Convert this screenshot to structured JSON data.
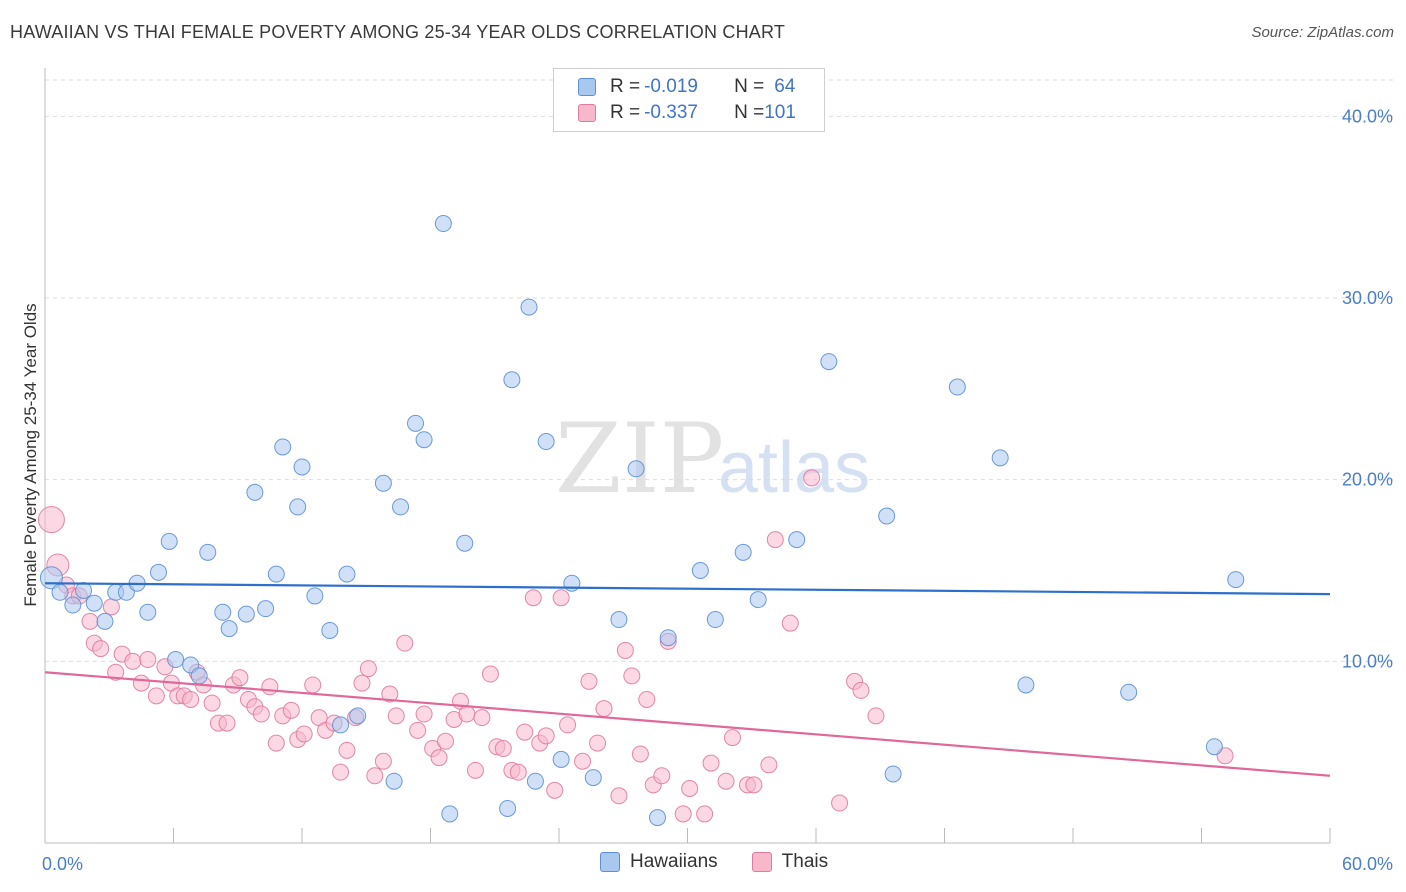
{
  "title": "HAWAIIAN VS THAI FEMALE POVERTY AMONG 25-34 YEAR OLDS CORRELATION CHART",
  "source": "Source: ZipAtlas.com",
  "watermark": {
    "zip": "ZIP",
    "atlas": "atlas"
  },
  "legend": {
    "rows": [
      {
        "r_label": "R = ",
        "r_value": "-0.019",
        "n_label": "N = ",
        "n_value": "64",
        "color": "#a9c8f0",
        "stroke": "#5b8fd6"
      },
      {
        "r_label": "R = ",
        "r_value": "-0.337",
        "n_label": "N = ",
        "n_value": "101",
        "color": "#f7b8cc",
        "stroke": "#e17aa0"
      }
    ]
  },
  "bottom_legend": {
    "items": [
      "Hawaiians",
      "Thais"
    ]
  },
  "chart_data": {
    "type": "scatter",
    "title": "HAWAIIAN VS THAI FEMALE POVERTY AMONG 25-34 YEAR OLDS CORRELATION CHART",
    "ylabel": "Female Poverty Among 25-34 Year Olds",
    "xlabel": "",
    "xlim": [
      0,
      60
    ],
    "ylim": [
      0,
      42
    ],
    "x_ticks": [
      "0.0%",
      "60.0%"
    ],
    "y_ticks": [
      {
        "value": 10,
        "label": "10.0%"
      },
      {
        "value": 20,
        "label": "20.0%"
      },
      {
        "value": 30,
        "label": "30.0%"
      },
      {
        "value": 40,
        "label": "40.0%"
      }
    ],
    "grid": true,
    "colors": {
      "hawaiians": "#5b8fd6",
      "thais": "#e17aa0",
      "hawaiians_line": "#2e6fcc",
      "thais_line": "#e0689a",
      "tick": "#4a7ec8"
    },
    "series": [
      {
        "name": "Hawaiians",
        "trend": {
          "x": [
            0,
            60
          ],
          "y": [
            14.3,
            13.7
          ]
        },
        "points": [
          [
            0.3,
            14.6
          ],
          [
            0.7,
            13.8
          ],
          [
            1.3,
            13.1
          ],
          [
            1.8,
            13.9
          ],
          [
            2.3,
            13.2
          ],
          [
            2.8,
            12.2
          ],
          [
            3.3,
            13.8
          ],
          [
            3.8,
            13.8
          ],
          [
            4.3,
            14.3
          ],
          [
            4.8,
            12.7
          ],
          [
            5.3,
            14.9
          ],
          [
            5.8,
            16.6
          ],
          [
            6.1,
            10.1
          ],
          [
            6.8,
            9.8
          ],
          [
            7.2,
            9.2
          ],
          [
            7.6,
            16.0
          ],
          [
            8.3,
            12.7
          ],
          [
            8.6,
            11.8
          ],
          [
            9.4,
            12.6
          ],
          [
            9.8,
            19.3
          ],
          [
            10.3,
            12.9
          ],
          [
            10.8,
            14.8
          ],
          [
            11.1,
            21.8
          ],
          [
            12.0,
            20.7
          ],
          [
            11.8,
            18.5
          ],
          [
            12.6,
            13.6
          ],
          [
            13.3,
            11.7
          ],
          [
            13.8,
            6.5
          ],
          [
            14.1,
            14.8
          ],
          [
            14.6,
            7.0
          ],
          [
            15.8,
            19.8
          ],
          [
            16.3,
            3.4
          ],
          [
            16.6,
            18.5
          ],
          [
            17.3,
            23.1
          ],
          [
            17.7,
            22.2
          ],
          [
            18.6,
            34.1
          ],
          [
            18.9,
            1.6
          ],
          [
            19.6,
            16.5
          ],
          [
            21.6,
            1.9
          ],
          [
            21.8,
            25.5
          ],
          [
            22.6,
            29.5
          ],
          [
            22.9,
            3.4
          ],
          [
            23.4,
            22.1
          ],
          [
            24.1,
            4.6
          ],
          [
            24.6,
            14.3
          ],
          [
            25.6,
            3.6
          ],
          [
            26.8,
            12.3
          ],
          [
            27.6,
            20.6
          ],
          [
            28.6,
            1.4
          ],
          [
            29.1,
            11.3
          ],
          [
            30.6,
            15.0
          ],
          [
            31.3,
            12.3
          ],
          [
            32.6,
            16.0
          ],
          [
            33.3,
            13.4
          ],
          [
            35.1,
            16.7
          ],
          [
            36.6,
            26.5
          ],
          [
            39.3,
            18.0
          ],
          [
            39.6,
            3.8
          ],
          [
            42.6,
            25.1
          ],
          [
            44.6,
            21.2
          ],
          [
            45.8,
            8.7
          ],
          [
            50.6,
            8.3
          ],
          [
            54.6,
            5.3
          ],
          [
            55.6,
            14.5
          ]
        ]
      },
      {
        "name": "Thais",
        "trend": {
          "x": [
            0,
            60
          ],
          "y": [
            9.4,
            3.7
          ]
        },
        "points": [
          [
            0.3,
            17.8
          ],
          [
            0.6,
            15.3
          ],
          [
            1.0,
            14.2
          ],
          [
            1.3,
            13.6
          ],
          [
            1.6,
            13.6
          ],
          [
            2.1,
            12.2
          ],
          [
            2.3,
            11.0
          ],
          [
            2.6,
            10.7
          ],
          [
            3.1,
            13.0
          ],
          [
            3.3,
            9.4
          ],
          [
            3.6,
            10.4
          ],
          [
            4.1,
            10.0
          ],
          [
            4.5,
            8.8
          ],
          [
            4.8,
            10.1
          ],
          [
            5.2,
            8.1
          ],
          [
            5.6,
            9.7
          ],
          [
            5.9,
            8.8
          ],
          [
            6.2,
            8.1
          ],
          [
            6.5,
            8.1
          ],
          [
            6.8,
            7.9
          ],
          [
            7.1,
            9.4
          ],
          [
            7.4,
            8.7
          ],
          [
            7.8,
            7.7
          ],
          [
            8.1,
            6.6
          ],
          [
            8.5,
            6.6
          ],
          [
            8.8,
            8.7
          ],
          [
            9.1,
            9.1
          ],
          [
            9.5,
            7.9
          ],
          [
            9.8,
            7.5
          ],
          [
            10.1,
            7.1
          ],
          [
            10.5,
            8.6
          ],
          [
            10.8,
            5.5
          ],
          [
            11.1,
            7.0
          ],
          [
            11.5,
            7.3
          ],
          [
            11.8,
            5.7
          ],
          [
            12.1,
            6.0
          ],
          [
            12.5,
            8.7
          ],
          [
            12.8,
            6.9
          ],
          [
            13.1,
            6.2
          ],
          [
            13.5,
            6.6
          ],
          [
            13.8,
            3.9
          ],
          [
            14.1,
            5.1
          ],
          [
            14.5,
            6.9
          ],
          [
            14.8,
            8.8
          ],
          [
            15.1,
            9.6
          ],
          [
            15.4,
            3.7
          ],
          [
            15.8,
            4.5
          ],
          [
            16.1,
            8.2
          ],
          [
            16.4,
            7.0
          ],
          [
            16.8,
            11.0
          ],
          [
            17.4,
            6.2
          ],
          [
            17.7,
            7.1
          ],
          [
            18.1,
            5.2
          ],
          [
            18.4,
            4.7
          ],
          [
            18.7,
            5.6
          ],
          [
            19.1,
            6.8
          ],
          [
            19.4,
            7.8
          ],
          [
            19.7,
            7.1
          ],
          [
            20.1,
            4.0
          ],
          [
            20.4,
            6.9
          ],
          [
            20.8,
            9.3
          ],
          [
            21.1,
            5.3
          ],
          [
            21.4,
            5.2
          ],
          [
            21.8,
            4.0
          ],
          [
            22.1,
            3.9
          ],
          [
            22.4,
            6.1
          ],
          [
            22.8,
            13.5
          ],
          [
            23.1,
            5.5
          ],
          [
            23.4,
            5.9
          ],
          [
            23.8,
            2.9
          ],
          [
            24.1,
            13.5
          ],
          [
            24.4,
            6.5
          ],
          [
            25.1,
            4.5
          ],
          [
            25.4,
            8.9
          ],
          [
            25.8,
            5.5
          ],
          [
            26.1,
            7.4
          ],
          [
            26.8,
            2.6
          ],
          [
            27.1,
            10.6
          ],
          [
            27.4,
            9.2
          ],
          [
            27.8,
            4.9
          ],
          [
            28.1,
            7.9
          ],
          [
            28.4,
            3.2
          ],
          [
            28.8,
            3.7
          ],
          [
            29.1,
            11.1
          ],
          [
            29.8,
            1.6
          ],
          [
            30.1,
            3.0
          ],
          [
            30.8,
            1.6
          ],
          [
            31.1,
            4.4
          ],
          [
            31.8,
            3.4
          ],
          [
            32.1,
            5.8
          ],
          [
            32.8,
            3.2
          ],
          [
            33.1,
            3.2
          ],
          [
            33.8,
            4.3
          ],
          [
            34.1,
            16.7
          ],
          [
            34.8,
            12.1
          ],
          [
            35.8,
            20.1
          ],
          [
            37.1,
            2.2
          ],
          [
            37.8,
            8.9
          ],
          [
            38.1,
            8.4
          ],
          [
            38.8,
            7.0
          ],
          [
            55.1,
            4.8
          ]
        ]
      }
    ]
  }
}
